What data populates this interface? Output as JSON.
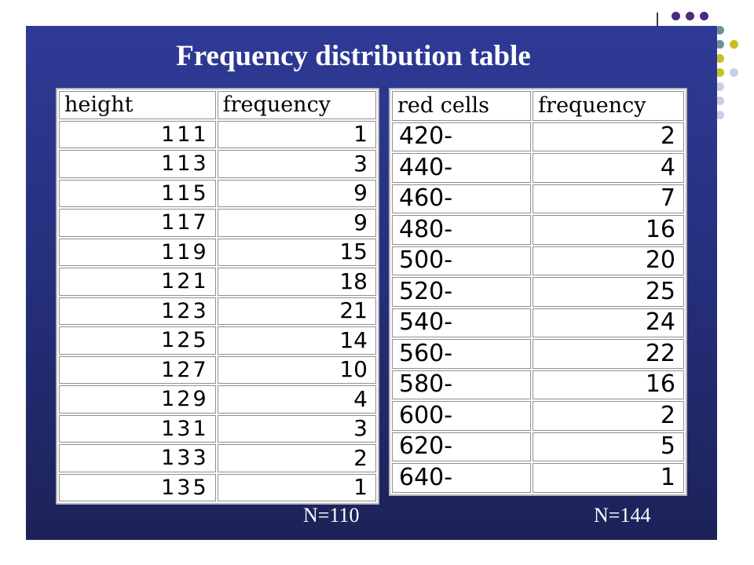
{
  "title": "Frequency distribution table",
  "table_height": {
    "headers": [
      "height",
      "frequency"
    ],
    "rows": [
      {
        "value": "111",
        "frequency": "1"
      },
      {
        "value": "113",
        "frequency": "3"
      },
      {
        "value": "115",
        "frequency": "9"
      },
      {
        "value": "117",
        "frequency": "9"
      },
      {
        "value": "119",
        "frequency": "15"
      },
      {
        "value": "121",
        "frequency": "18"
      },
      {
        "value": "123",
        "frequency": "21"
      },
      {
        "value": "125",
        "frequency": "14"
      },
      {
        "value": "127",
        "frequency": "10"
      },
      {
        "value": "129",
        "frequency": "4"
      },
      {
        "value": "131",
        "frequency": "3"
      },
      {
        "value": "133",
        "frequency": "2"
      },
      {
        "value": "135",
        "frequency": "1"
      }
    ],
    "total_label": "N=110"
  },
  "table_red_cells": {
    "headers": [
      "red cells",
      "frequency"
    ],
    "rows": [
      {
        "value": "420-",
        "frequency": "2"
      },
      {
        "value": "440-",
        "frequency": "4"
      },
      {
        "value": "460-",
        "frequency": "7"
      },
      {
        "value": "480-",
        "frequency": "16"
      },
      {
        "value": "500-",
        "frequency": "20"
      },
      {
        "value": "520-",
        "frequency": "25"
      },
      {
        "value": "540-",
        "frequency": "24"
      },
      {
        "value": "560-",
        "frequency": "22"
      },
      {
        "value": "580-",
        "frequency": "16"
      },
      {
        "value": "600-",
        "frequency": "2"
      },
      {
        "value": "620-",
        "frequency": "5"
      },
      {
        "value": "640-",
        "frequency": "1"
      }
    ],
    "total_label": "N=144"
  },
  "colors": {
    "slide_background": "#2a3488",
    "dot_purple": "#4b2a7f",
    "dot_teal": "#6e8f9a",
    "dot_olive": "#c8c020",
    "dot_lavender": "#c9cde6"
  }
}
